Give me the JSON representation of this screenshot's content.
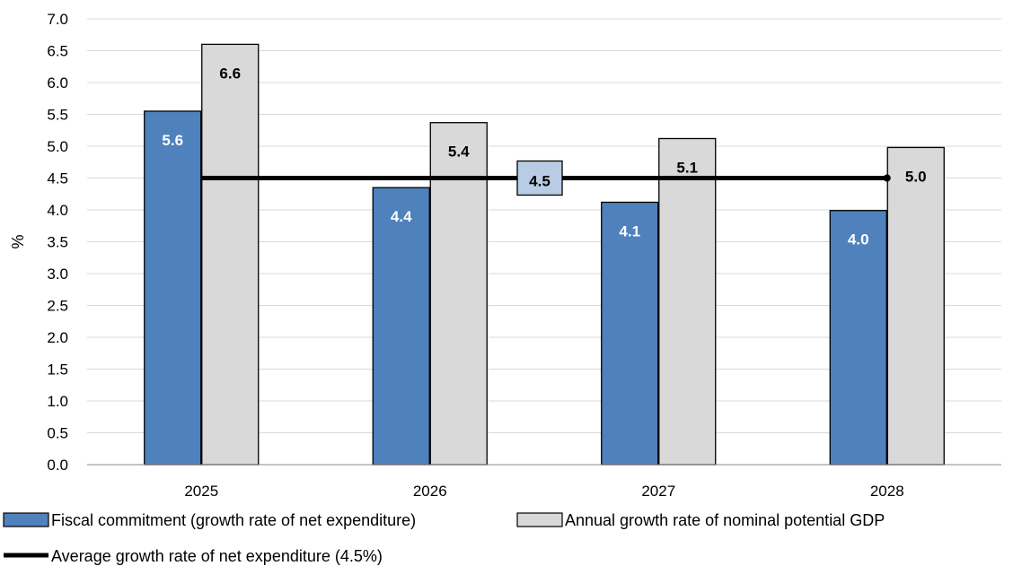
{
  "chart_data": {
    "type": "bar",
    "title": "",
    "xlabel": "",
    "ylabel": "%",
    "ylim": [
      0,
      7.0
    ],
    "ytick_step": 0.5,
    "ytick_labels": [
      "0.0",
      "0.5",
      "1.0",
      "1.5",
      "2.0",
      "2.5",
      "3.0",
      "3.5",
      "4.0",
      "4.5",
      "5.0",
      "5.5",
      "6.0",
      "6.5",
      "7.0"
    ],
    "categories": [
      "2025",
      "2026",
      "2027",
      "2028"
    ],
    "series": [
      {
        "name": "Fiscal commitment (growth rate of net expenditure)",
        "values": [
          5.55,
          4.35,
          4.12,
          3.99
        ],
        "labels": [
          "5.6",
          "4.4",
          "4.1",
          "4.0"
        ],
        "color": "#4f81bd"
      },
      {
        "name": "Annual growth rate of nominal potential GDP",
        "values": [
          6.6,
          5.37,
          5.12,
          4.98
        ],
        "labels": [
          "6.6",
          "5.4",
          "5.1",
          "5.0"
        ],
        "color": "#d9d9d9"
      }
    ],
    "reference_line": {
      "name": "Average growth rate of net expenditure (4.5%)",
      "value": 4.5,
      "label": "4.5",
      "color": "#000000",
      "label_color": "#b8cce4"
    },
    "grid": true,
    "legend_position": "bottom-left"
  }
}
